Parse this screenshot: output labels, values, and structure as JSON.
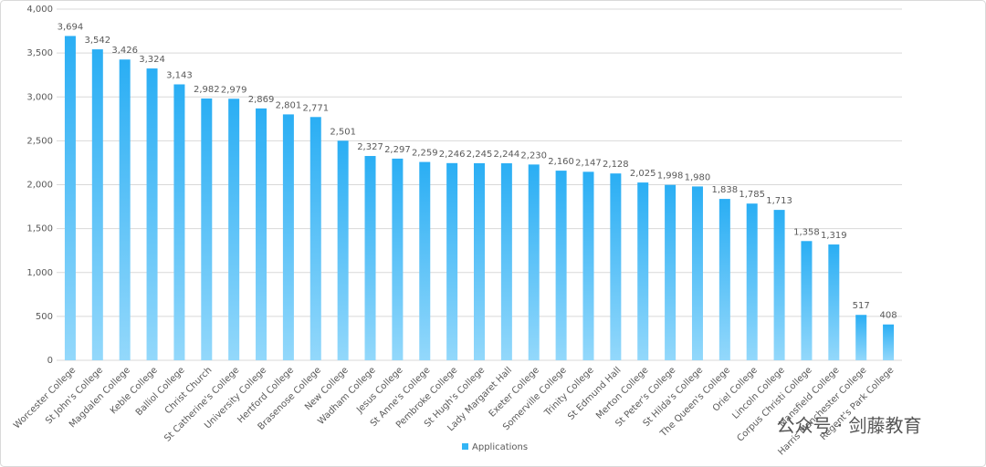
{
  "chart_data": {
    "type": "bar",
    "categories": [
      "Worcester College",
      "St John's College",
      "Magdalen College",
      "Keble College",
      "Balliol College",
      "Christ Church",
      "St Catherine's College",
      "University College",
      "Hertford College",
      "Brasenose College",
      "New College",
      "Wadham College",
      "Jesus College",
      "St Anne's College",
      "Pembroke College",
      "St Hugh's College",
      "Lady Margaret Hall",
      "Exeter College",
      "Somerville College",
      "Trinity College",
      "St Edmund Hall",
      "Merton College",
      "St Peter's College",
      "St Hilda's College",
      "The Queen's College",
      "Oriel College",
      "Lincoln College",
      "Corpus Christi College",
      "Mansfield College",
      "Harris Manchester College",
      "Regent's Park College"
    ],
    "series": [
      {
        "name": "Applications",
        "color": "#33b5f5",
        "values": [
          3694,
          3542,
          3426,
          3324,
          3143,
          2982,
          2979,
          2869,
          2801,
          2771,
          2501,
          2327,
          2297,
          2259,
          2246,
          2245,
          2244,
          2230,
          2160,
          2147,
          2128,
          2025,
          1998,
          1980,
          1838,
          1785,
          1713,
          1358,
          1319,
          517,
          408
        ],
        "value_labels": [
          "3,694",
          "3,542",
          "3,426",
          "3,324",
          "3,143",
          "2,982",
          "2,979",
          "2,869",
          "2,801",
          "2,771",
          "2,501",
          "2,327",
          "2,297",
          "2,259",
          "2,246",
          "2,245",
          "2,244",
          "2,230",
          "2,160",
          "2,147",
          "2,128",
          "2,025",
          "1,998",
          "1,980",
          "1,838",
          "1,785",
          "1,713",
          "1,358",
          "1,319",
          "517",
          "408"
        ]
      }
    ],
    "ylim": [
      0,
      4000
    ],
    "yticks": [
      0,
      500,
      {
        "value": 1000,
        "label": "1,000"
      },
      {
        "value": 1500,
        "label": "1,500"
      },
      {
        "value": 2000,
        "label": "2,000"
      },
      {
        "value": 2500,
        "label": "2,500"
      },
      {
        "value": 3000,
        "label": "3,000"
      },
      {
        "value": 3500,
        "label": "3,500"
      },
      {
        "value": 4000,
        "label": "4,000"
      }
    ],
    "grid": true,
    "legend": "bottom",
    "watermark": "公众号 · 剑藤教育"
  }
}
